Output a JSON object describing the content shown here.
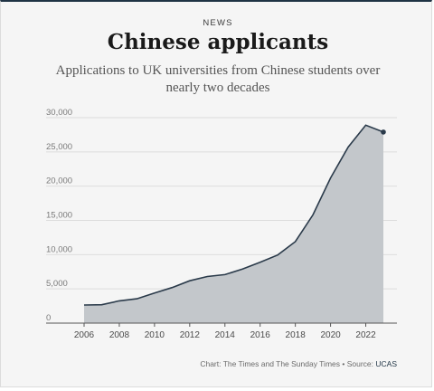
{
  "header": {
    "kicker": "NEWS",
    "title": "Chinese applicants",
    "subtitle": "Applications to UK universities from Chinese students over nearly two decades"
  },
  "footer": {
    "credit": "Chart: The Times and The Sunday Times • Source:",
    "source": "UCAS"
  },
  "colors": {
    "area_fill": "#c3c7cb",
    "line": "#2a3a4a",
    "grid": "#dcdcdc",
    "text": "#7a7a7a"
  },
  "chart_data": {
    "type": "area",
    "title": "Chinese applicants",
    "subtitle": "Applications to UK universities from Chinese students over nearly two decades",
    "x": [
      2006,
      2007,
      2008,
      2009,
      2010,
      2011,
      2012,
      2013,
      2014,
      2015,
      2016,
      2017,
      2018,
      2019,
      2020,
      2021,
      2022,
      2023
    ],
    "series": [
      {
        "values": [
          2640,
          2680,
          3250,
          3550,
          4400,
          5200,
          6180,
          6800,
          7080,
          7900,
          8900,
          9950,
          11900,
          15800,
          21200,
          25700,
          28900,
          27900
        ]
      }
    ],
    "xlim": [
      2006,
      2023
    ],
    "ylim": [
      0,
      30000
    ],
    "x_ticks": [
      "2006",
      "2008",
      "2010",
      "2012",
      "2014",
      "2016",
      "2018",
      "2020",
      "2022"
    ],
    "y_ticks": [
      "0",
      "5,000",
      "10,000",
      "15,000",
      "20,000",
      "25,000",
      "30,000"
    ],
    "grid": true,
    "xlabel": "",
    "ylabel": ""
  }
}
